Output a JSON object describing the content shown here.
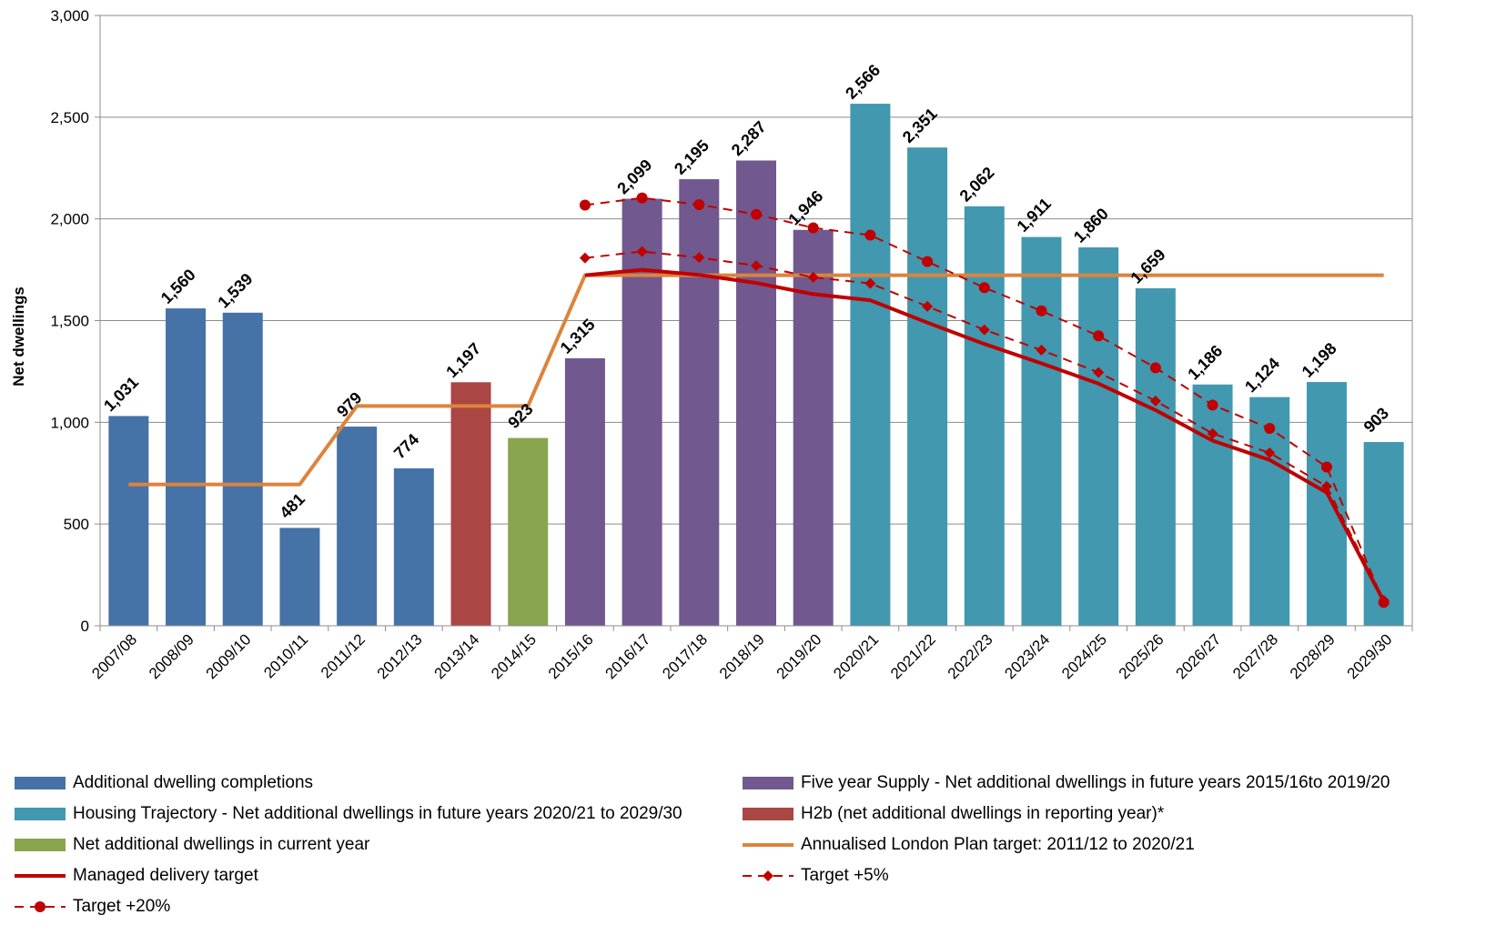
{
  "chart_data": {
    "type": "bar",
    "title": "",
    "xlabel": "",
    "ylabel": "Net dwellings",
    "ylim": [
      0,
      3000
    ],
    "yticks": [
      "0",
      "500",
      "1,000",
      "1,500",
      "2,000",
      "2,500",
      "3,000"
    ],
    "ytick_values": [
      0,
      500,
      1000,
      1500,
      2000,
      2500,
      3000
    ],
    "grid": true,
    "legend_position": "bottom",
    "categories": [
      "2007/08",
      "2008/09",
      "2009/10",
      "2010/11",
      "2011/12",
      "2012/13",
      "2013/14",
      "2014/15",
      "2015/16",
      "2016/17",
      "2017/18",
      "2018/19",
      "2019/20",
      "2020/21",
      "2021/22",
      "2022/23",
      "2023/24",
      "2024/25",
      "2025/26",
      "2026/27",
      "2027/28",
      "2028/29",
      "2029/30"
    ],
    "bars": {
      "values": [
        1031,
        1560,
        1539,
        481,
        979,
        774,
        1197,
        923,
        1315,
        2099,
        2195,
        2287,
        1946,
        2566,
        2351,
        2062,
        1911,
        1860,
        1659,
        1186,
        1124,
        1198,
        903
      ],
      "labels": [
        "1,031",
        "1,560",
        "1,539",
        "481",
        "979",
        "774",
        "1,197",
        "923",
        "1,315",
        "2,099",
        "2,195",
        "2,287",
        "1,946",
        "2,566",
        "2,351",
        "2,062",
        "1,911",
        "1,860",
        "1,659",
        "1,186",
        "1,124",
        "1,198",
        "903"
      ],
      "series_index": [
        0,
        0,
        0,
        0,
        0,
        0,
        3,
        2,
        1,
        1,
        1,
        1,
        1,
        4,
        4,
        4,
        4,
        4,
        4,
        4,
        4,
        4,
        4
      ]
    },
    "series": [
      {
        "name": "Additional dwelling completions",
        "kind": "bar",
        "color": "#4572A7"
      },
      {
        "name": "Five year Supply - Net additional dwellings in future years 2015/16to 2019/20",
        "kind": "bar",
        "color": "#71588F"
      },
      {
        "name": "Net additional dwellings in current year",
        "kind": "bar",
        "color": "#89A54E"
      },
      {
        "name": "H2b (net additional dwellings in reporting year)*",
        "kind": "bar",
        "color": "#AA4643"
      },
      {
        "name": "Housing Trajectory - Net additional dwellings in future years 2020/21 to 2029/30",
        "kind": "bar",
        "color": "#4198AF"
      },
      {
        "name": "Annualised London Plan target: 2011/12 to 2020/21",
        "kind": "line",
        "color": "#DB843D",
        "values": [
          695,
          695,
          695,
          695,
          1080,
          1080,
          1080,
          1080,
          1723,
          1723,
          1723,
          1723,
          1723,
          1723,
          1723,
          1723,
          1723,
          1723,
          1723,
          1723,
          1723,
          1723,
          1723
        ]
      },
      {
        "name": "Managed delivery target",
        "kind": "line",
        "color": "#C00000",
        "values": [
          null,
          null,
          null,
          null,
          null,
          null,
          null,
          null,
          1723,
          1750,
          1725,
          1685,
          1630,
          1600,
          1490,
          1385,
          1290,
          1190,
          1060,
          910,
          815,
          655,
          120
        ]
      },
      {
        "name": "Target +5%",
        "kind": "line-dashed-diamond",
        "color": "#C00000",
        "values": [
          null,
          null,
          null,
          null,
          null,
          null,
          null,
          null,
          1808,
          1840,
          1810,
          1770,
          1713,
          1683,
          1570,
          1455,
          1355,
          1245,
          1105,
          945,
          850,
          685,
          125
        ]
      },
      {
        "name": "Target +20%",
        "kind": "line-dashed-circle",
        "color": "#C00000",
        "values": [
          null,
          null,
          null,
          null,
          null,
          null,
          null,
          null,
          2068,
          2103,
          2070,
          2022,
          1956,
          1920,
          1790,
          1662,
          1548,
          1425,
          1268,
          1085,
          970,
          780,
          115
        ]
      }
    ],
    "legend_order": [
      "Additional dwelling completions",
      "Five year Supply - Net additional dwellings in future years 2015/16to 2019/20",
      "Housing Trajectory - Net additional dwellings in future years 2020/21 to 2029/30",
      "H2b (net additional dwellings in reporting year)*",
      "Net additional dwellings in current year",
      "Annualised London Plan target: 2011/12 to 2020/21",
      "Managed delivery target",
      "Target +5%",
      "Target +20%"
    ]
  }
}
